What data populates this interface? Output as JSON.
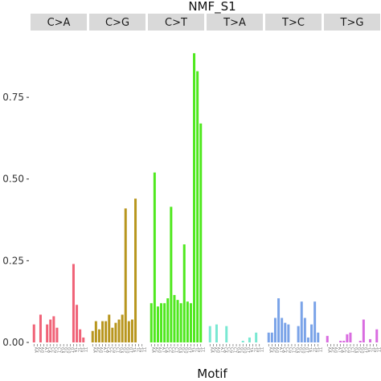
{
  "chart_data": {
    "type": "bar",
    "title": "NMF_S1",
    "xlabel": "Motif",
    "ylabel": "",
    "ylim": [
      0,
      0.92
    ],
    "yticks": [
      0.0,
      0.25,
      0.5,
      0.75
    ],
    "ytick_labels": [
      "0.00",
      "0.25",
      "0.50",
      "0.75"
    ],
    "grid": false,
    "legend": "none",
    "motifs": [
      "A.A",
      "A.C",
      "A.G",
      "A.T",
      "C.A",
      "C.C",
      "C.G",
      "C.T",
      "G.A",
      "G.C",
      "G.G",
      "G.T",
      "T.A",
      "T.C",
      "T.G",
      "T.T"
    ],
    "panels": [
      {
        "label": "C>A",
        "color": "#f06277",
        "values": [
          0.055,
          0.0,
          0.085,
          0.0,
          0.055,
          0.07,
          0.08,
          0.045,
          0.0,
          0.0,
          0.0,
          0.0,
          0.24,
          0.115,
          0.04,
          0.015
        ]
      },
      {
        "label": "C>G",
        "color": "#b8961e",
        "values": [
          0.035,
          0.065,
          0.04,
          0.065,
          0.065,
          0.085,
          0.045,
          0.06,
          0.07,
          0.085,
          0.41,
          0.065,
          0.07,
          0.44,
          0.0,
          0.0
        ]
      },
      {
        "label": "C>T",
        "color": "#4fe81e",
        "values": [
          0.12,
          0.52,
          0.11,
          0.12,
          0.12,
          0.135,
          0.415,
          0.145,
          0.13,
          0.12,
          0.3,
          0.125,
          0.12,
          0.885,
          0.83,
          0.67
        ]
      },
      {
        "label": "T>A",
        "color": "#79e8d2",
        "values": [
          0.05,
          0.0,
          0.055,
          0.0,
          0.0,
          0.05,
          0.0,
          0.0,
          0.0,
          0.0,
          0.005,
          0.0,
          0.015,
          0.0,
          0.03,
          0.0
        ]
      },
      {
        "label": "T>C",
        "color": "#7aa3e8",
        "values": [
          0.03,
          0.03,
          0.075,
          0.135,
          0.075,
          0.06,
          0.055,
          0.0,
          0.0,
          0.05,
          0.125,
          0.075,
          0.015,
          0.055,
          0.125,
          0.03
        ]
      },
      {
        "label": "T>G",
        "color": "#d96ce0",
        "values": [
          0.02,
          0.0,
          0.0,
          0.0,
          0.005,
          0.005,
          0.025,
          0.03,
          0.0,
          0.0,
          0.005,
          0.07,
          0.0,
          0.01,
          0.0,
          0.04
        ]
      }
    ]
  }
}
